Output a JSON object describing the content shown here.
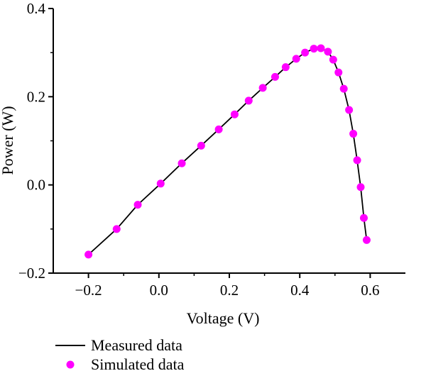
{
  "chart_data": {
    "type": "line",
    "xlabel": "Voltage (V)",
    "ylabel": "Power (W)",
    "xlim": [
      -0.3,
      0.7
    ],
    "ylim": [
      -0.2,
      0.4
    ],
    "x_ticks": [
      -0.2,
      0.0,
      0.2,
      0.4,
      0.6
    ],
    "y_ticks": [
      -0.2,
      0.0,
      0.2,
      0.4
    ],
    "x_tick_labels": [
      "−0.2",
      "0.0",
      "0.2",
      "0.4",
      "0.6"
    ],
    "y_tick_labels": [
      "−0.2",
      "0.0",
      "0.2",
      "0.4"
    ],
    "grid": false,
    "legend_position": "bottom-left",
    "series": [
      {
        "name": "Measured data",
        "style": "line",
        "color": "#000000",
        "x": [
          -0.2,
          -0.12,
          -0.06,
          0.005,
          0.065,
          0.12,
          0.17,
          0.215,
          0.255,
          0.295,
          0.33,
          0.36,
          0.39,
          0.415,
          0.44,
          0.46,
          0.48,
          0.495,
          0.51,
          0.525,
          0.54,
          0.552,
          0.563,
          0.573,
          0.582,
          0.59
        ],
        "y": [
          -0.158,
          -0.1,
          -0.045,
          0.003,
          0.049,
          0.089,
          0.126,
          0.16,
          0.191,
          0.22,
          0.245,
          0.267,
          0.286,
          0.3,
          0.309,
          0.31,
          0.302,
          0.284,
          0.255,
          0.218,
          0.17,
          0.116,
          0.056,
          -0.005,
          -0.075,
          -0.125
        ]
      },
      {
        "name": "Simulated data",
        "style": "markers",
        "color": "#ff00ff",
        "x": [
          -0.2,
          -0.12,
          -0.06,
          0.005,
          0.065,
          0.12,
          0.17,
          0.215,
          0.255,
          0.295,
          0.33,
          0.36,
          0.39,
          0.415,
          0.44,
          0.46,
          0.48,
          0.495,
          0.51,
          0.525,
          0.54,
          0.552,
          0.563,
          0.573,
          0.582,
          0.59
        ],
        "y": [
          -0.158,
          -0.1,
          -0.045,
          0.003,
          0.049,
          0.089,
          0.126,
          0.16,
          0.191,
          0.22,
          0.245,
          0.267,
          0.286,
          0.3,
          0.309,
          0.31,
          0.302,
          0.284,
          0.255,
          0.218,
          0.17,
          0.116,
          0.056,
          -0.005,
          -0.075,
          -0.125
        ]
      }
    ]
  }
}
